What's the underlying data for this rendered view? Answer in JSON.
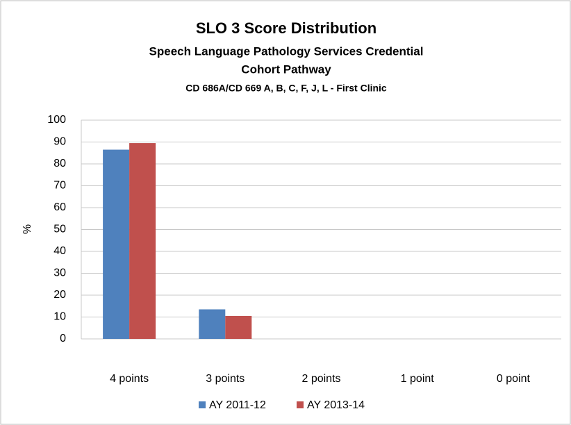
{
  "chart_data": {
    "type": "bar",
    "title": "SLO 3 Score Distribution",
    "subtitle_lines": [
      "Speech Language Pathology Services Credential",
      "Cohort Pathway"
    ],
    "course_line": "CD 686A/CD 669 A, B, C, F, J, L - First Clinic",
    "y_label": "%",
    "categories": [
      "4 points",
      "3 points",
      "2 points",
      "1 point",
      "0 point"
    ],
    "series": [
      {
        "name": "AY 2011-12",
        "color": "#4f81bd",
        "values": [
          86.5,
          13.5,
          0,
          0,
          0
        ]
      },
      {
        "name": "AY 2013-14",
        "color": "#c0504d",
        "values": [
          89.5,
          10.5,
          0,
          0,
          0
        ]
      }
    ],
    "ylim": [
      0,
      100
    ],
    "yticks": [
      0,
      10,
      20,
      30,
      40,
      50,
      60,
      70,
      80,
      90,
      100
    ],
    "grid": true,
    "legend": "bottom"
  }
}
